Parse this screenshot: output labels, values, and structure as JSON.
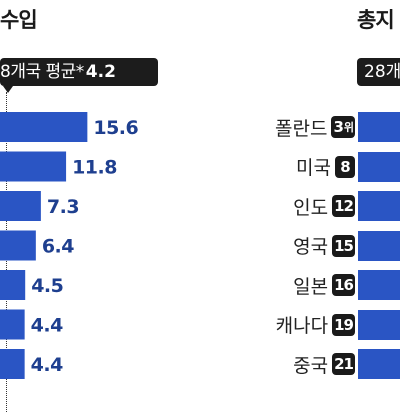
{
  "left_panel": {
    "title": "수입",
    "average_box": {
      "label": "8개국 평균*",
      "value": "4.2"
    }
  },
  "right_panel": {
    "title": "총지",
    "box_label": "28개"
  },
  "chart_data": [
    {
      "type": "bar",
      "title": "수입",
      "values": [
        15.6,
        11.8,
        7.3,
        6.4,
        4.5,
        4.4,
        4.4
      ],
      "value_labels": [
        "15.6",
        "11.8",
        "7.3",
        "6.4",
        "4.5",
        "4.4",
        "4.4"
      ],
      "reference_line": {
        "label": "8개국 평균*",
        "value": 4.2
      },
      "colors": {
        "bar": "#2a55c4",
        "label": "#1e3f8f",
        "reference": "#1c1c1c"
      }
    },
    {
      "type": "bar",
      "title": "총지",
      "categories": [
        "폴란드",
        "미국",
        "인도",
        "영국",
        "일본",
        "캐나다",
        "중국"
      ],
      "ranks": [
        {
          "number": "3",
          "suffix": "위"
        },
        {
          "number": "8",
          "suffix": ""
        },
        {
          "number": "12",
          "suffix": ""
        },
        {
          "number": "15",
          "suffix": ""
        },
        {
          "number": "16",
          "suffix": ""
        },
        {
          "number": "19",
          "suffix": ""
        },
        {
          "number": "21",
          "suffix": ""
        }
      ],
      "colors": {
        "bar": "#2a55c4",
        "badge": "#1a1a1a"
      }
    }
  ]
}
